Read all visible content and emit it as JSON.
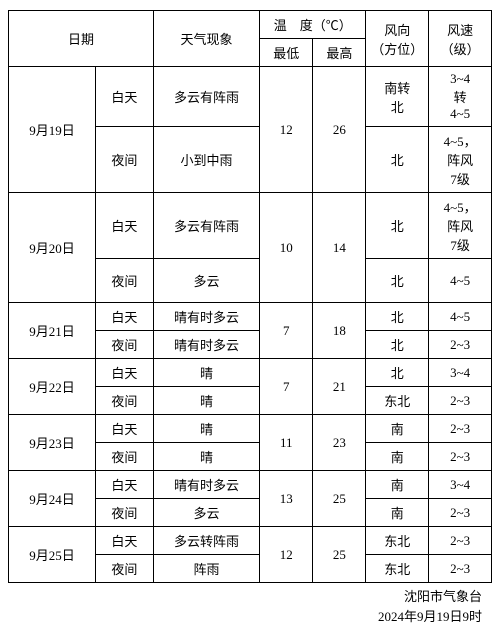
{
  "header": {
    "date": "日期",
    "weather": "天气现象",
    "temp": "温　度（℃）",
    "temp_low": "最低",
    "temp_high": "最高",
    "wind_dir": "风向\n（方位）",
    "wind_speed": "风速\n（级）"
  },
  "rows": [
    {
      "date": "9月19日",
      "p1": "白天",
      "w1": "多云有阵雨",
      "p2": "夜间",
      "w2": "小到中雨",
      "low": "12",
      "high": "26",
      "d1": "南转\n北",
      "s1": "3~4\n转\n4~5",
      "d2": "北",
      "s2": "4~5，\n阵风\n7级"
    },
    {
      "date": "9月20日",
      "p1": "白天",
      "w1": "多云有阵雨",
      "p2": "夜间",
      "w2": "多云",
      "low": "10",
      "high": "14",
      "d1": "北",
      "s1": "4~5，\n阵风\n7级",
      "d2": "北",
      "s2": "4~5"
    },
    {
      "date": "9月21日",
      "p1": "白天",
      "w1": "晴有时多云",
      "p2": "夜间",
      "w2": "晴有时多云",
      "low": "7",
      "high": "18",
      "d1": "北",
      "s1": "4~5",
      "d2": "北",
      "s2": "2~3"
    },
    {
      "date": "9月22日",
      "p1": "白天",
      "w1": "晴",
      "p2": "夜间",
      "w2": "晴",
      "low": "7",
      "high": "21",
      "d1": "北",
      "s1": "3~4",
      "d2": "东北",
      "s2": "2~3"
    },
    {
      "date": "9月23日",
      "p1": "白天",
      "w1": "晴",
      "p2": "夜间",
      "w2": "晴",
      "low": "11",
      "high": "23",
      "d1": "南",
      "s1": "2~3",
      "d2": "南",
      "s2": "2~3"
    },
    {
      "date": "9月24日",
      "p1": "白天",
      "w1": "晴有时多云",
      "p2": "夜间",
      "w2": "多云",
      "low": "13",
      "high": "25",
      "d1": "南",
      "s1": "3~4",
      "d2": "南",
      "s2": "2~3"
    },
    {
      "date": "9月25日",
      "p1": "白天",
      "w1": "多云转阵雨",
      "p2": "夜间",
      "w2": "阵雨",
      "low": "12",
      "high": "25",
      "d1": "东北",
      "s1": "2~3",
      "d2": "东北",
      "s2": "2~3"
    }
  ],
  "footer": {
    "station": "沈阳市气象台",
    "issued": "2024年9月19日9时"
  },
  "style": {
    "border_color": "#000000",
    "bg": "#ffffff",
    "text": "#000000",
    "font_size": 13
  }
}
